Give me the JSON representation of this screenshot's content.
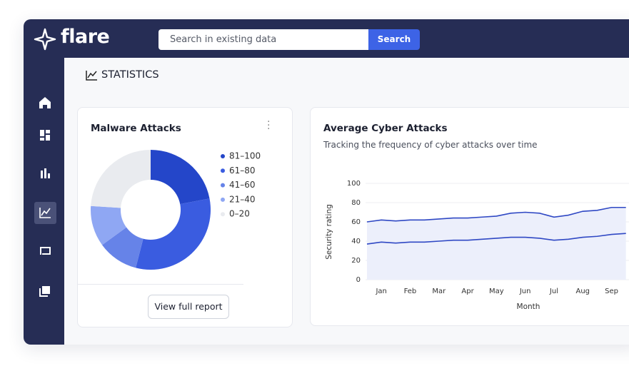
{
  "app": {
    "logo": "flare",
    "search_placeholder": "Search in existing data",
    "search_button": "Search"
  },
  "page_title": "STATISTICS",
  "malware_card": {
    "title": "Malware Attacks",
    "button": "View full report",
    "chart_data": {
      "type": "donut",
      "categories": [
        "81–100",
        "61–80",
        "41–60",
        "21–40",
        "0–20"
      ],
      "values": [
        22,
        32,
        11,
        11,
        24
      ],
      "colors": [
        "#2446c9",
        "#3a5ce0",
        "#6683e8",
        "#8fa7f3",
        "#e9ebef"
      ]
    }
  },
  "cyber_card": {
    "title": "Average Cyber Attacks",
    "subtitle": "Tracking the frequency of cyber attacks over time",
    "chart_data": {
      "type": "line",
      "x_label": "Month",
      "y_label": "Security rating",
      "categories": [
        null,
        "Jan",
        null,
        "Feb",
        null,
        "Mar",
        null,
        "Apr",
        null,
        "May",
        null,
        "Jun",
        null,
        "Jul",
        null,
        "Aug",
        null,
        "Sep",
        null
      ],
      "series": [
        {
          "color": "#2f48c4",
          "values": [
            60,
            62,
            61,
            62,
            62,
            63,
            64,
            64,
            65,
            66,
            69,
            70,
            69,
            65,
            67,
            71,
            72,
            75,
            75
          ]
        },
        {
          "color": "#2f48c4",
          "values": [
            37,
            39,
            38,
            39,
            39,
            40,
            41,
            41,
            42,
            43,
            44,
            44,
            43,
            41,
            42,
            44,
            45,
            47,
            48
          ]
        }
      ],
      "area_color": "#eceffb",
      "ylim": [
        0,
        100
      ],
      "yticks": [
        0,
        20,
        40,
        60,
        80,
        100
      ],
      "grid": true
    }
  }
}
